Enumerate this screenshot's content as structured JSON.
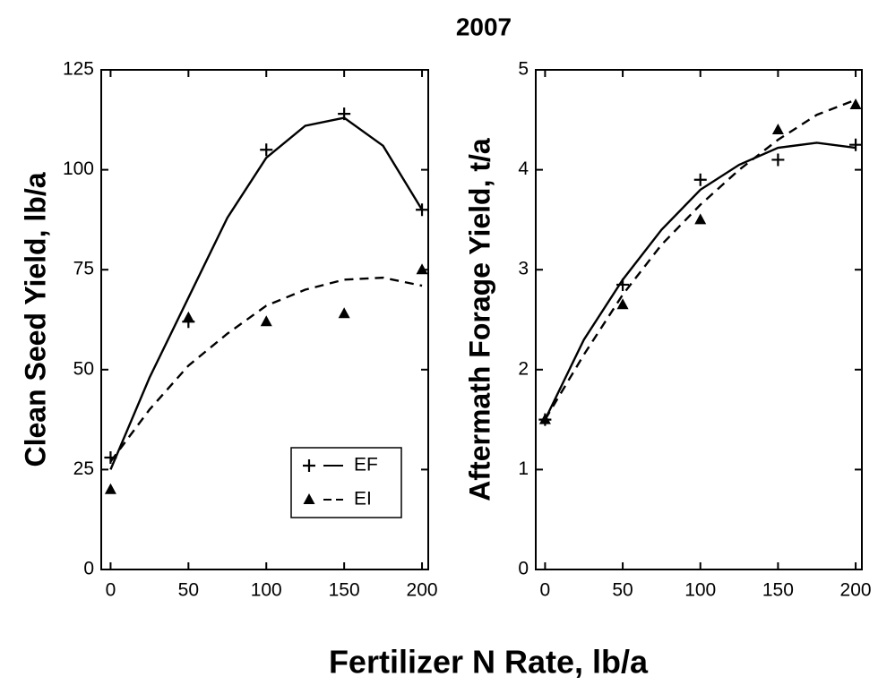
{
  "title": "2007",
  "xlabel": "Fertilizer N Rate, lb/a",
  "chart_data": [
    {
      "type": "scatter",
      "ylabel": "Clean Seed Yield, lb/a",
      "x": [
        0,
        50,
        100,
        150,
        200
      ],
      "curve_x": [
        0,
        25,
        50,
        75,
        100,
        125,
        150,
        175,
        200
      ],
      "xlim": [
        -6,
        204
      ],
      "xticks": [
        0,
        50,
        100,
        150,
        200
      ],
      "ylim": [
        0,
        125
      ],
      "yticks": [
        0,
        25,
        50,
        75,
        100,
        125
      ],
      "legend": "lower right",
      "series": [
        {
          "name": "EF",
          "color": "#000000",
          "marker": "plus",
          "dashed": false,
          "values": [
            28,
            62,
            105,
            114,
            90
          ],
          "curve_values": [
            25,
            48,
            68,
            88,
            103,
            111,
            113,
            106,
            90
          ]
        },
        {
          "name": "EI",
          "color": "#000000",
          "marker": "triangle",
          "dashed": true,
          "values": [
            20,
            63,
            62,
            64,
            75
          ],
          "curve_values": [
            27,
            40,
            51,
            59,
            66,
            70,
            72.5,
            73,
            71
          ]
        }
      ]
    },
    {
      "type": "scatter",
      "ylabel": "Aftermath Forage Yield, t/a",
      "x": [
        0,
        50,
        100,
        150,
        200
      ],
      "curve_x": [
        0,
        25,
        50,
        75,
        100,
        125,
        150,
        175,
        200
      ],
      "xlim": [
        -6,
        204
      ],
      "xticks": [
        0,
        50,
        100,
        150,
        200
      ],
      "ylim": [
        0,
        5
      ],
      "yticks": [
        0,
        1,
        2,
        3,
        4,
        5
      ],
      "series": [
        {
          "color": "#000000",
          "marker": "plus",
          "dashed": false,
          "values": [
            1.5,
            2.85,
            3.9,
            4.1,
            4.25
          ],
          "curve_values": [
            1.5,
            2.3,
            2.9,
            3.4,
            3.8,
            4.05,
            4.22,
            4.27,
            4.22
          ]
        },
        {
          "color": "#000000",
          "marker": "triangle",
          "dashed": true,
          "values": [
            1.5,
            2.65,
            3.5,
            4.4,
            4.65
          ],
          "curve_values": [
            1.5,
            2.15,
            2.75,
            3.25,
            3.65,
            4.0,
            4.3,
            4.55,
            4.7
          ]
        }
      ]
    }
  ]
}
